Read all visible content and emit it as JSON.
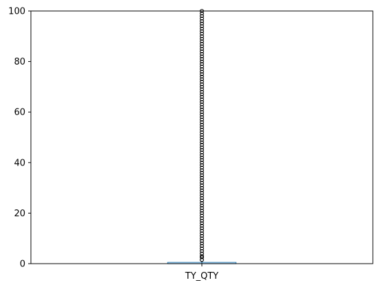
{
  "chart_data": {
    "type": "box",
    "categories": [
      "TY_QTY"
    ],
    "ylim": [
      0,
      100
    ],
    "yticks": [
      0,
      20,
      40,
      60,
      80,
      100
    ],
    "series": [
      {
        "values": [
          {
            "q1": 0,
            "median": 0,
            "q3": 0.5,
            "whisker_low": 0,
            "whisker_high": 1,
            "outliers": [
              1.5,
              2.5,
              3,
              4,
              5,
              6,
              7,
              8,
              9,
              10,
              11,
              12,
              13,
              14,
              15,
              16,
              17,
              18,
              19,
              20,
              21,
              22,
              23,
              24,
              25,
              26,
              27,
              28,
              29,
              30,
              31,
              32,
              33,
              34,
              35,
              36,
              37,
              38,
              39,
              40,
              41,
              42,
              43,
              44,
              45,
              46,
              47,
              48,
              49,
              50,
              51,
              52,
              53,
              54,
              55,
              56,
              57,
              58,
              59,
              60,
              61,
              62,
              63,
              64,
              65,
              66,
              67,
              68,
              69,
              70,
              71,
              72,
              73,
              74,
              75,
              76,
              77,
              78,
              79,
              80,
              81,
              82,
              83,
              84,
              85,
              86,
              87,
              88,
              89,
              90,
              91,
              92,
              93,
              94,
              95,
              96,
              97,
              98,
              99,
              100
            ]
          }
        ]
      }
    ],
    "colors": {
      "box": "#1f77b4",
      "axis": "#000000",
      "outlier": "#000000"
    }
  }
}
